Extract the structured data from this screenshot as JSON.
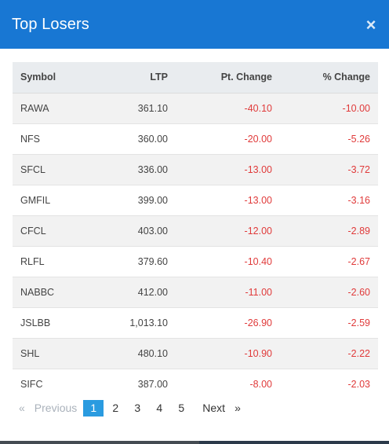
{
  "modal": {
    "title": "Top Losers",
    "close_glyph": "×"
  },
  "table": {
    "headers": {
      "symbol": "Symbol",
      "ltp": "LTP",
      "pt_change": "Pt. Change",
      "pct_change": "% Change"
    },
    "rows": [
      {
        "symbol": "RAWA",
        "ltp": "361.10",
        "pt_change": "-40.10",
        "pct_change": "-10.00"
      },
      {
        "symbol": "NFS",
        "ltp": "360.00",
        "pt_change": "-20.00",
        "pct_change": "-5.26"
      },
      {
        "symbol": "SFCL",
        "ltp": "336.00",
        "pt_change": "-13.00",
        "pct_change": "-3.72"
      },
      {
        "symbol": "GMFIL",
        "ltp": "399.00",
        "pt_change": "-13.00",
        "pct_change": "-3.16"
      },
      {
        "symbol": "CFCL",
        "ltp": "403.00",
        "pt_change": "-12.00",
        "pct_change": "-2.89"
      },
      {
        "symbol": "RLFL",
        "ltp": "379.60",
        "pt_change": "-10.40",
        "pct_change": "-2.67"
      },
      {
        "symbol": "NABBC",
        "ltp": "412.00",
        "pt_change": "-11.00",
        "pct_change": "-2.60"
      },
      {
        "symbol": "JSLBB",
        "ltp": "1,013.10",
        "pt_change": "-26.90",
        "pct_change": "-2.59"
      },
      {
        "symbol": "SHL",
        "ltp": "480.10",
        "pt_change": "-10.90",
        "pct_change": "-2.22"
      },
      {
        "symbol": "SIFC",
        "ltp": "387.00",
        "pt_change": "-8.00",
        "pct_change": "-2.03"
      }
    ]
  },
  "pagination": {
    "prev_arrow": "«",
    "prev_label": "Previous",
    "pages": [
      "1",
      "2",
      "3",
      "4",
      "5"
    ],
    "active_page": "1",
    "next_label": "Next",
    "next_arrow": "»"
  },
  "colors": {
    "header_bg": "#1877d3",
    "negative": "#e03a3a",
    "active_page": "#2a9be0"
  }
}
